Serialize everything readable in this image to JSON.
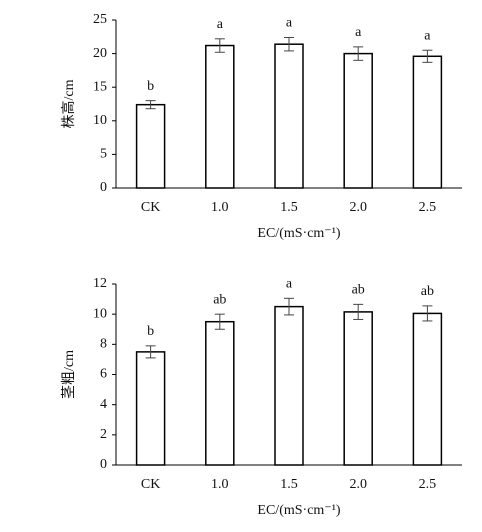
{
  "chart_data": [
    {
      "type": "bar",
      "ylabel": "株高/cm",
      "xlabel": "EC/(mS·cm⁻¹)",
      "categories": [
        "CK",
        "1.0",
        "1.5",
        "2.0",
        "2.5"
      ],
      "values": [
        12.4,
        21.2,
        21.4,
        20.0,
        19.6
      ],
      "errors": [
        0.6,
        1.0,
        1.0,
        1.0,
        0.9
      ],
      "letters": [
        "b",
        "a",
        "a",
        "a",
        "a"
      ],
      "ylim": [
        0,
        25
      ],
      "yticks": [
        0,
        5,
        10,
        15,
        20,
        25
      ],
      "color": "#ffffff"
    },
    {
      "type": "bar",
      "ylabel": "茎粗/cm",
      "xlabel": "EC/(mS·cm⁻¹)",
      "categories": [
        "CK",
        "1.0",
        "1.5",
        "2.0",
        "2.5"
      ],
      "values": [
        7.5,
        9.5,
        10.5,
        10.15,
        10.05
      ],
      "errors": [
        0.4,
        0.5,
        0.55,
        0.5,
        0.5
      ],
      "letters": [
        "b",
        "ab",
        "a",
        "ab",
        "ab"
      ],
      "ylim": [
        0,
        12
      ],
      "yticks": [
        0,
        2,
        4,
        6,
        8,
        10,
        12
      ],
      "color": "#ffffff"
    }
  ]
}
